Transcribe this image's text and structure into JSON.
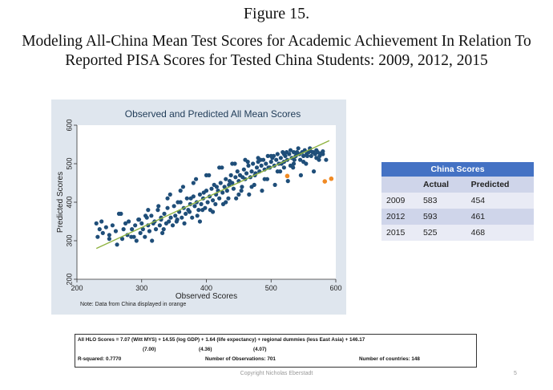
{
  "figure_label": "Figure 15.",
  "figure_title_line1": "Modeling All-China Mean Test Scores for Academic Achievement In Relation To",
  "figure_title_line2": "Reported PISA Scores for Tested China Students: 2009, 2012, 2015",
  "chart_data": {
    "type": "scatter",
    "title": "Observed and Predicted All Mean Scores",
    "xlabel": "Observed Scores",
    "ylabel": "Predicted Scores",
    "xlim": [
      200,
      600
    ],
    "ylim": [
      200,
      600
    ],
    "x_ticks": [
      200,
      300,
      400,
      500,
      600
    ],
    "y_ticks": [
      200,
      300,
      400,
      500,
      600
    ],
    "note": "Note: Data from China displayed in orange",
    "fit_line": {
      "x": [
        230,
        590
      ],
      "y": [
        280,
        560
      ]
    },
    "series": [
      {
        "name": "All observations",
        "color": "#1f4e79",
        "x": [
          230,
          232,
          235,
          238,
          240,
          245,
          250,
          255,
          260,
          265,
          270,
          272,
          275,
          278,
          280,
          285,
          288,
          290,
          292,
          295,
          298,
          300,
          302,
          305,
          308,
          310,
          312,
          315,
          318,
          320,
          322,
          325,
          328,
          330,
          332,
          335,
          338,
          340,
          342,
          345,
          348,
          350,
          352,
          355,
          358,
          360,
          362,
          365,
          368,
          370,
          372,
          375,
          378,
          380,
          382,
          385,
          388,
          390,
          392,
          395,
          398,
          400,
          402,
          405,
          408,
          410,
          412,
          415,
          418,
          420,
          422,
          425,
          428,
          430,
          432,
          435,
          438,
          440,
          442,
          445,
          448,
          450,
          452,
          455,
          458,
          460,
          462,
          465,
          468,
          470,
          472,
          475,
          478,
          480,
          482,
          485,
          488,
          490,
          492,
          495,
          498,
          500,
          502,
          505,
          508,
          510,
          512,
          515,
          518,
          520,
          522,
          525,
          528,
          530,
          532,
          535,
          538,
          540,
          542,
          545,
          548,
          550,
          552,
          555,
          558,
          560,
          562,
          565,
          568,
          570,
          572,
          575,
          578,
          580,
          585,
          262,
          268,
          284,
          296,
          306,
          316,
          326,
          334,
          344,
          354,
          364,
          374,
          384,
          394,
          404,
          414,
          424,
          434,
          444,
          454,
          464,
          474,
          484,
          494,
          504,
          514,
          524,
          534,
          544,
          554,
          564,
          574,
          250,
          310,
          330,
          356,
          366,
          376,
          386,
          396,
          406,
          416,
          426,
          436,
          446,
          456,
          466,
          476,
          486,
          496,
          506,
          516,
          526,
          536,
          546,
          556,
          566,
          576,
          340,
          360,
          380,
          400,
          420,
          440,
          460,
          480,
          500,
          520,
          540,
          560,
          390,
          410,
          430,
          450,
          470,
          490,
          510,
          530,
          550,
          570,
          580,
          520,
          535
        ],
        "y": [
          345,
          310,
          330,
          350,
          320,
          335,
          315,
          340,
          325,
          370,
          305,
          330,
          345,
          315,
          350,
          330,
          310,
          340,
          300,
          355,
          320,
          345,
          330,
          310,
          360,
          340,
          325,
          365,
          345,
          350,
          330,
          380,
          340,
          355,
          320,
          370,
          345,
          385,
          350,
          360,
          340,
          390,
          365,
          355,
          375,
          400,
          360,
          385,
          370,
          410,
          380,
          395,
          360,
          415,
          390,
          400,
          380,
          420,
          395,
          410,
          385,
          430,
          400,
          415,
          435,
          405,
          445,
          420,
          430,
          410,
          450,
          425,
          440,
          460,
          430,
          445,
          470,
          450,
          435,
          465,
          480,
          455,
          470,
          440,
          485,
          460,
          475,
          495,
          465,
          480,
          500,
          470,
          490,
          505,
          480,
          495,
          510,
          485,
          500,
          520,
          490,
          505,
          515,
          495,
          510,
          525,
          500,
          515,
          530,
          505,
          520,
          510,
          525,
          535,
          515,
          530,
          520,
          525,
          540,
          510,
          530,
          520,
          535,
          525,
          530,
          540,
          520,
          530,
          525,
          535,
          530,
          520,
          528,
          532,
          510,
          290,
          370,
          310,
          355,
          365,
          300,
          390,
          330,
          420,
          350,
          440,
          375,
          460,
          380,
          470,
          395,
          490,
          410,
          500,
          430,
          505,
          445,
          510,
          460,
          520,
          480,
          530,
          490,
          525,
          500,
          530,
          510,
          305,
          380,
          360,
          400,
          345,
          410,
          365,
          425,
          380,
          440,
          395,
          455,
          410,
          465,
          420,
          475,
          430,
          490,
          445,
          500,
          455,
          510,
          470,
          520,
          480,
          525,
          410,
          430,
          450,
          470,
          490,
          500,
          510,
          515,
          520,
          525,
          530,
          535,
          350,
          375,
          400,
          420,
          440,
          460,
          480,
          495,
          505,
          515,
          525,
          490,
          500
        ]
      },
      {
        "name": "China",
        "color": "#f08a24",
        "x": [
          583,
          593,
          525
        ],
        "y": [
          454,
          461,
          468
        ]
      }
    ]
  },
  "table": {
    "title": "China Scores",
    "columns": [
      "",
      "Actual",
      "Predicted"
    ],
    "rows": [
      [
        "2009",
        "583",
        "454"
      ],
      [
        "2012",
        "593",
        "461"
      ],
      [
        "2015",
        "525",
        "468"
      ]
    ]
  },
  "regression": {
    "equation": "All HLO Scores = 7.07 (Witt MYS) + 14.55 (log GDP) + 1.64 (life expectancy) + regional dummies (less East Asia) + 146.17",
    "se1": "(7.00)",
    "se2": "(4.36)",
    "se3": "(4.07)",
    "rsq": "R-squared: 0.7770",
    "nobs": "Number of Observations: 701",
    "ncountries": "Number of countries: 148"
  },
  "copyright": "Copyright Nicholas Eberstadt",
  "page_number": "5"
}
